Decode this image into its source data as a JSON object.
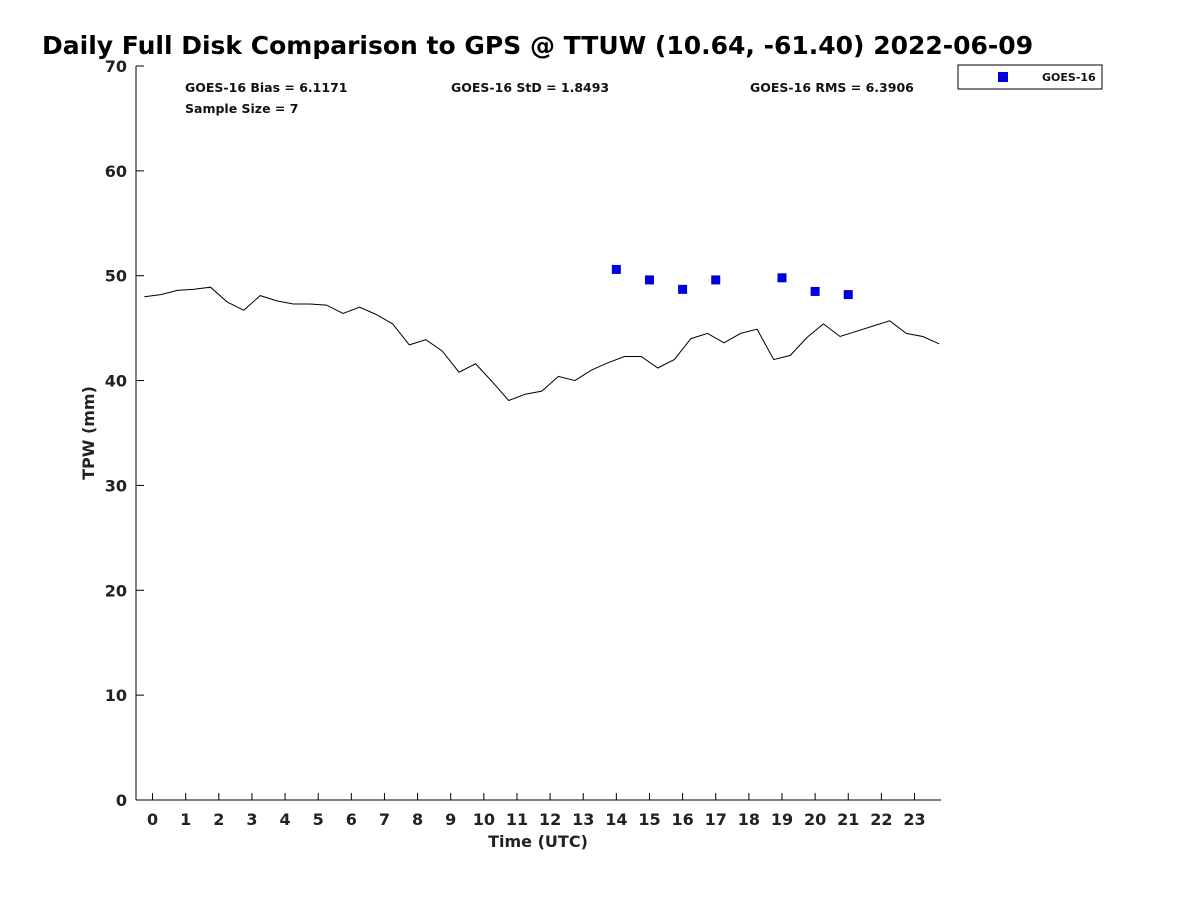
{
  "chart_data": {
    "type": "scatter",
    "title": "Daily Full Disk Comparison to GPS @ TTUW (10.64, -61.40) 2022-06-09",
    "xlabel": "Time (UTC)",
    "ylabel": "TPW (mm)",
    "xlim": [
      -0.5,
      23.8
    ],
    "ylim": [
      0,
      70
    ],
    "x_ticks": [
      "0",
      "1",
      "2",
      "3",
      "4",
      "5",
      "6",
      "7",
      "8",
      "9",
      "10",
      "11",
      "12",
      "13",
      "14",
      "15",
      "16",
      "17",
      "18",
      "19",
      "20",
      "21",
      "22",
      "23"
    ],
    "y_ticks": [
      "0",
      "10",
      "20",
      "30",
      "40",
      "50",
      "60",
      "70"
    ],
    "grid": false,
    "legend": {
      "position": "top-right",
      "entries": [
        "GOES-16"
      ]
    },
    "stats": {
      "bias": "GOES-16 Bias = 6.1171",
      "std": "GOES-16 StD = 1.8493",
      "rms": "GOES-16 RMS = 6.3906",
      "sample": "Sample Size = 7"
    },
    "series": [
      {
        "name": "GOES-16",
        "kind": "scatter",
        "color": "#0000dd",
        "marker": "square",
        "x": [
          14,
          15,
          16,
          17,
          19,
          20,
          21
        ],
        "y": [
          50.6,
          49.6,
          48.7,
          49.6,
          49.8,
          48.5,
          48.2
        ]
      },
      {
        "kind": "line",
        "color": "#000000",
        "x": [
          -0.25,
          0.25,
          0.75,
          1.25,
          1.75,
          2.25,
          2.75,
          3.25,
          3.75,
          4.25,
          4.75,
          5.25,
          5.75,
          6.25,
          6.75,
          7.25,
          7.75,
          8.25,
          8.75,
          9.25,
          9.75,
          10.25,
          10.75,
          11.25,
          11.75,
          12.25,
          12.75,
          13.25,
          13.75,
          14.25,
          14.75,
          15.25,
          15.75,
          16.25,
          16.75,
          17.25,
          17.75,
          18.25,
          18.75,
          19.25,
          19.75,
          20.25,
          20.75,
          21.25,
          21.75,
          22.25,
          22.75,
          23.25,
          23.75
        ],
        "y": [
          48.0,
          48.2,
          48.6,
          48.7,
          48.9,
          47.5,
          46.7,
          48.1,
          47.6,
          47.3,
          47.3,
          47.2,
          46.4,
          47.0,
          46.3,
          45.4,
          43.4,
          43.9,
          42.8,
          40.8,
          41.6,
          39.9,
          38.1,
          38.7,
          39.0,
          40.4,
          40.0,
          41.0,
          41.7,
          42.3,
          42.3,
          41.2,
          42.0,
          44.0,
          44.5,
          43.6,
          44.5,
          44.9,
          42.0,
          42.4,
          44.1,
          45.4,
          44.2,
          44.7,
          45.2,
          45.7,
          44.5,
          44.2,
          43.5
        ]
      }
    ]
  }
}
